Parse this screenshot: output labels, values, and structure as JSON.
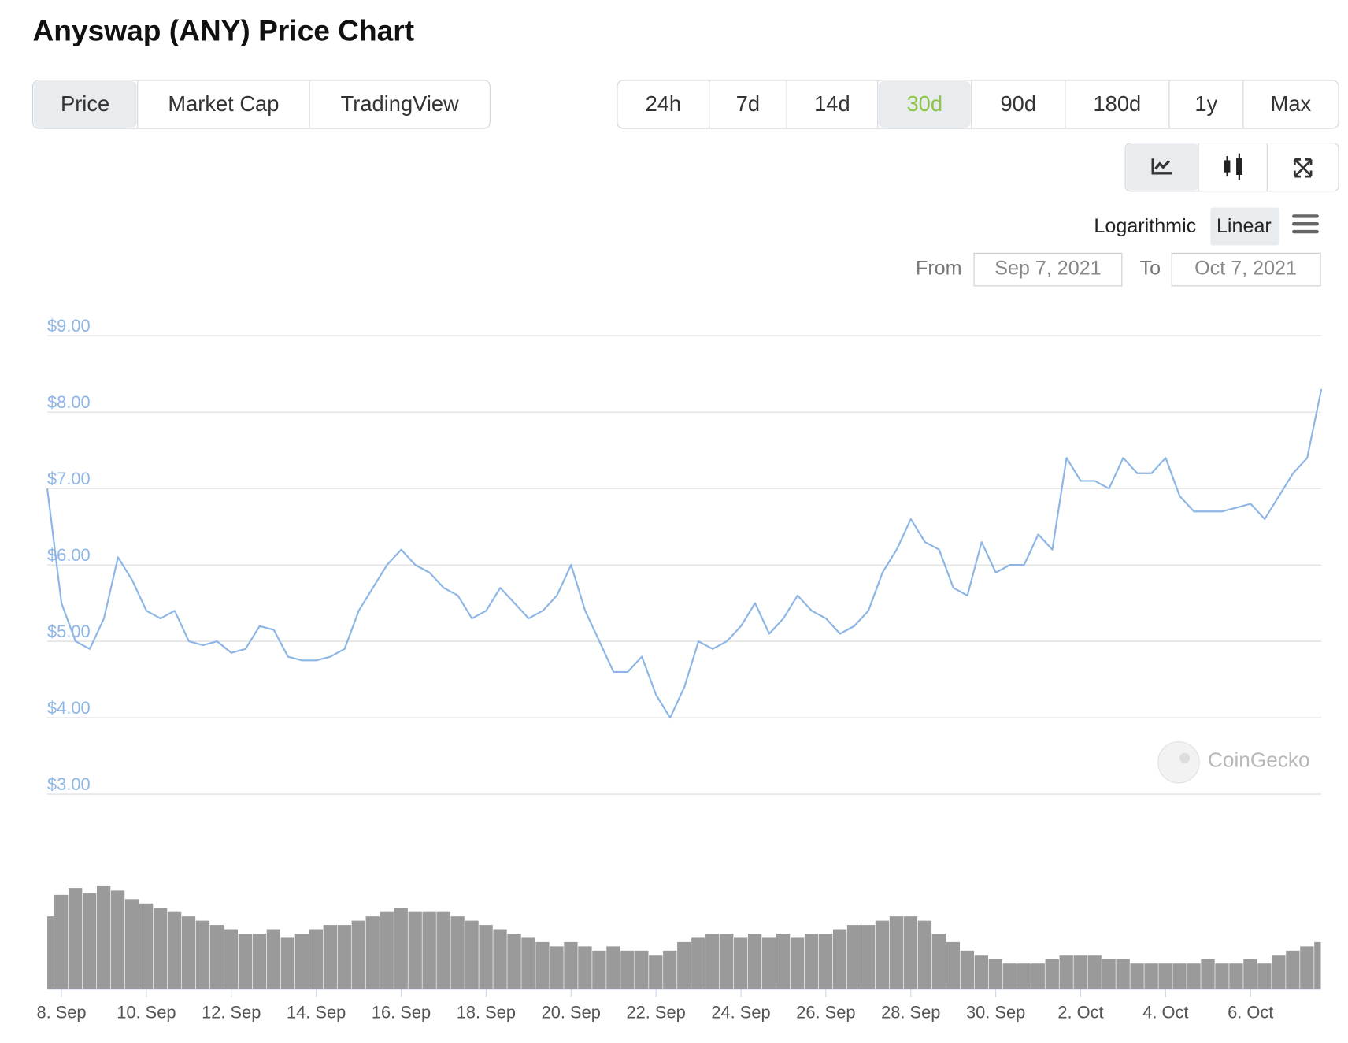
{
  "header": {
    "title": "Anyswap (ANY) Price Chart"
  },
  "tabs": [
    "Price",
    "Market Cap",
    "TradingView"
  ],
  "tabs_active": 0,
  "ranges": [
    "24h",
    "7d",
    "14d",
    "30d",
    "90d",
    "180d",
    "1y",
    "Max"
  ],
  "ranges_active": 3,
  "scale": [
    "Logarithmic",
    "Linear"
  ],
  "scale_active": 1,
  "date_range": {
    "from_label": "From",
    "from": "Sep 7, 2021",
    "to_label": "To",
    "to": "Oct 7, 2021"
  },
  "watermark": "CoinGecko",
  "chart_data": {
    "type": "line",
    "color": "#8db6e6",
    "volume_color": "#9a9a9a",
    "grid": true,
    "x": [
      "2021-09-07T16:00",
      "2021-09-08T00:00",
      "2021-09-08T08:00",
      "2021-09-08T16:00",
      "2021-09-09T00:00",
      "2021-09-09T08:00",
      "2021-09-09T16:00",
      "2021-09-10T00:00",
      "2021-09-10T08:00",
      "2021-09-10T16:00",
      "2021-09-11T00:00",
      "2021-09-11T08:00",
      "2021-09-11T16:00",
      "2021-09-12T00:00",
      "2021-09-12T08:00",
      "2021-09-12T16:00",
      "2021-09-13T00:00",
      "2021-09-13T08:00",
      "2021-09-13T16:00",
      "2021-09-14T00:00",
      "2021-09-14T08:00",
      "2021-09-14T16:00",
      "2021-09-15T00:00",
      "2021-09-15T08:00",
      "2021-09-15T16:00",
      "2021-09-16T00:00",
      "2021-09-16T08:00",
      "2021-09-16T16:00",
      "2021-09-17T00:00",
      "2021-09-17T08:00",
      "2021-09-17T16:00",
      "2021-09-18T00:00",
      "2021-09-18T08:00",
      "2021-09-18T16:00",
      "2021-09-19T00:00",
      "2021-09-19T08:00",
      "2021-09-19T16:00",
      "2021-09-20T00:00",
      "2021-09-20T08:00",
      "2021-09-20T16:00",
      "2021-09-21T00:00",
      "2021-09-21T08:00",
      "2021-09-21T16:00",
      "2021-09-22T00:00",
      "2021-09-22T08:00",
      "2021-09-22T16:00",
      "2021-09-23T00:00",
      "2021-09-23T08:00",
      "2021-09-23T16:00",
      "2021-09-24T00:00",
      "2021-09-24T08:00",
      "2021-09-24T16:00",
      "2021-09-25T00:00",
      "2021-09-25T08:00",
      "2021-09-25T16:00",
      "2021-09-26T00:00",
      "2021-09-26T08:00",
      "2021-09-26T16:00",
      "2021-09-27T00:00",
      "2021-09-27T08:00",
      "2021-09-27T16:00",
      "2021-09-28T00:00",
      "2021-09-28T08:00",
      "2021-09-28T16:00",
      "2021-09-29T00:00",
      "2021-09-29T08:00",
      "2021-09-29T16:00",
      "2021-09-30T00:00",
      "2021-09-30T08:00",
      "2021-09-30T16:00",
      "2021-10-01T00:00",
      "2021-10-01T08:00",
      "2021-10-01T16:00",
      "2021-10-02T00:00",
      "2021-10-02T08:00",
      "2021-10-02T16:00",
      "2021-10-03T00:00",
      "2021-10-03T08:00",
      "2021-10-03T16:00",
      "2021-10-04T00:00",
      "2021-10-04T08:00",
      "2021-10-04T16:00",
      "2021-10-05T00:00",
      "2021-10-05T08:00",
      "2021-10-05T16:00",
      "2021-10-06T00:00",
      "2021-10-06T08:00",
      "2021-10-06T16:00",
      "2021-10-07T00:00",
      "2021-10-07T08:00",
      "2021-10-07T16:00"
    ],
    "values": [
      7.0,
      5.5,
      5.0,
      4.9,
      5.3,
      6.1,
      5.8,
      5.4,
      5.3,
      5.4,
      5.0,
      4.95,
      5.0,
      4.85,
      4.9,
      5.2,
      5.15,
      4.8,
      4.75,
      4.75,
      4.8,
      4.9,
      5.4,
      5.7,
      6.0,
      6.2,
      6.0,
      5.9,
      5.7,
      5.6,
      5.3,
      5.4,
      5.7,
      5.5,
      5.3,
      5.4,
      5.6,
      6.0,
      5.4,
      5.0,
      4.6,
      4.6,
      4.8,
      4.3,
      4.0,
      4.4,
      5.0,
      4.9,
      5.0,
      5.2,
      5.5,
      5.1,
      5.3,
      5.6,
      5.4,
      5.3,
      5.1,
      5.2,
      5.4,
      5.9,
      6.2,
      6.6,
      6.3,
      6.2,
      5.7,
      5.6,
      6.3,
      5.9,
      6.0,
      6.0,
      6.4,
      6.2,
      7.4,
      7.1,
      7.1,
      7.0,
      7.4,
      7.2,
      7.2,
      7.4,
      6.9,
      6.7,
      6.7,
      6.7,
      6.75,
      6.8,
      6.6,
      6.9,
      7.2,
      7.4,
      8.3
    ],
    "volume": [
      85,
      110,
      118,
      112,
      120,
      115,
      105,
      100,
      95,
      90,
      85,
      80,
      75,
      70,
      65,
      65,
      70,
      60,
      65,
      70,
      75,
      75,
      80,
      85,
      90,
      95,
      90,
      90,
      90,
      85,
      80,
      75,
      70,
      65,
      60,
      55,
      50,
      55,
      50,
      45,
      50,
      45,
      45,
      40,
      45,
      55,
      60,
      65,
      65,
      60,
      65,
      60,
      65,
      60,
      65,
      65,
      70,
      75,
      75,
      80,
      85,
      85,
      80,
      65,
      55,
      45,
      40,
      35,
      30,
      30,
      30,
      35,
      40,
      40,
      40,
      35,
      35,
      30,
      30,
      30,
      30,
      30,
      35,
      30,
      30,
      35,
      30,
      40,
      45,
      50,
      55
    ],
    "xlim": [
      "2021-09-07T16:00",
      "2021-10-07T16:00"
    ],
    "xticks": [
      {
        "value": "2021-09-08T00:00",
        "label": "8. Sep"
      },
      {
        "value": "2021-09-10T00:00",
        "label": "10. Sep"
      },
      {
        "value": "2021-09-12T00:00",
        "label": "12. Sep"
      },
      {
        "value": "2021-09-14T00:00",
        "label": "14. Sep"
      },
      {
        "value": "2021-09-16T00:00",
        "label": "16. Sep"
      },
      {
        "value": "2021-09-18T00:00",
        "label": "18. Sep"
      },
      {
        "value": "2021-09-20T00:00",
        "label": "20. Sep"
      },
      {
        "value": "2021-09-22T00:00",
        "label": "22. Sep"
      },
      {
        "value": "2021-09-24T00:00",
        "label": "24. Sep"
      },
      {
        "value": "2021-09-26T00:00",
        "label": "26. Sep"
      },
      {
        "value": "2021-09-28T00:00",
        "label": "28. Sep"
      },
      {
        "value": "2021-09-30T00:00",
        "label": "30. Sep"
      },
      {
        "value": "2021-10-02T00:00",
        "label": "2. Oct"
      },
      {
        "value": "2021-10-04T00:00",
        "label": "4. Oct"
      },
      {
        "value": "2021-10-06T00:00",
        "label": "6. Oct"
      }
    ],
    "ylim": [
      3,
      9
    ],
    "yticks": [
      {
        "value": 3,
        "label": "$3.00"
      },
      {
        "value": 4,
        "label": "$4.00"
      },
      {
        "value": 5,
        "label": "$5.00"
      },
      {
        "value": 6,
        "label": "$6.00"
      },
      {
        "value": 7,
        "label": "$7.00"
      },
      {
        "value": 8,
        "label": "$8.00"
      },
      {
        "value": 9,
        "label": "$9.00"
      }
    ]
  }
}
